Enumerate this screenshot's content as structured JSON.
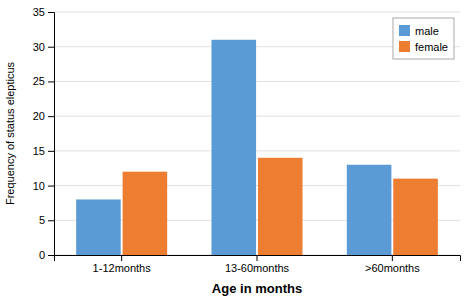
{
  "chart_data": {
    "type": "bar",
    "categories": [
      "1-12months",
      "13-60months",
      ">60months"
    ],
    "series": [
      {
        "name": "male",
        "color": "#5B9BD5",
        "values": [
          8,
          31,
          13
        ]
      },
      {
        "name": "female",
        "color": "#ED7D31",
        "values": [
          12,
          14,
          11
        ]
      }
    ],
    "xlabel": "Age in months",
    "ylabel": "Frequency of status elepticus",
    "ylim": [
      0,
      35
    ],
    "yticks": [
      0,
      5,
      10,
      15,
      20,
      25,
      30,
      35
    ],
    "grid": true,
    "legend": "upper right"
  }
}
